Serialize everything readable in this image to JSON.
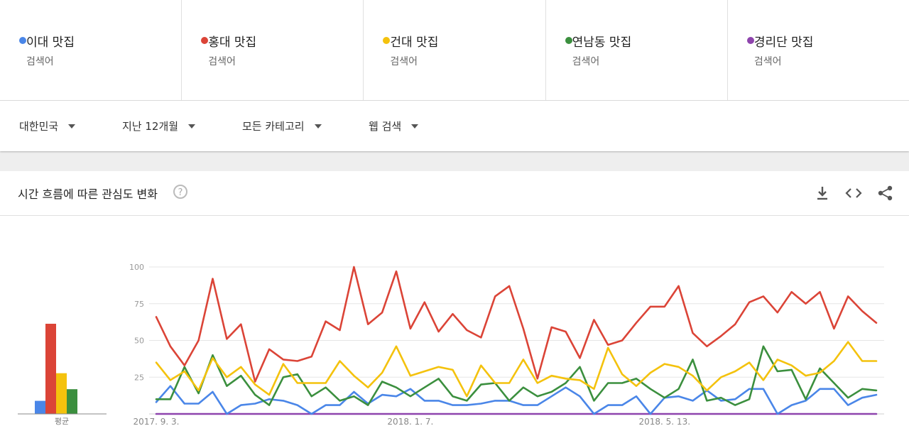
{
  "search_terms": [
    {
      "name": "이대 맛집",
      "sub": "검색어",
      "color": "#4a86e8"
    },
    {
      "name": "홍대 맛집",
      "sub": "검색어",
      "color": "#db4437"
    },
    {
      "name": "건대 맛집",
      "sub": "검색어",
      "color": "#f4c20d"
    },
    {
      "name": "연남동 맛집",
      "sub": "검색어",
      "color": "#3b8f3e"
    },
    {
      "name": "경리단 맛집",
      "sub": "검색어",
      "color": "#8e44ad"
    }
  ],
  "filters": {
    "region": "대한민국",
    "period": "지난 12개월",
    "category": "모든 카테고리",
    "search_type": "웹 검색"
  },
  "chart_header": {
    "title": "시간 흐름에 따른 관심도 변화",
    "help": "?",
    "icons": [
      "download-icon",
      "embed-code-icon",
      "share-icon"
    ]
  },
  "average_label": "평균",
  "chart_data": {
    "type": "line",
    "ylim": [
      0,
      100
    ],
    "yticks": [
      "25",
      "50",
      "75",
      "100"
    ],
    "xtick_labels": [
      {
        "label": "2017. 9. 3.",
        "index": 0
      },
      {
        "label": "2018. 1. 7.",
        "index": 18
      },
      {
        "label": "2018. 5. 13.",
        "index": 36
      }
    ],
    "averages": [
      {
        "name": "이대 맛집",
        "value": 9
      },
      {
        "name": "홍대 맛집",
        "value": 62
      },
      {
        "name": "건대 맛집",
        "value": 28
      },
      {
        "name": "연남동 맛집",
        "value": 17
      },
      {
        "name": "경리단 맛집",
        "value": 0
      }
    ],
    "series": [
      {
        "name": "홍대 맛집",
        "color": "#db4437",
        "values": [
          66,
          46,
          33,
          50,
          92,
          51,
          61,
          22,
          44,
          37,
          36,
          39,
          63,
          57,
          100,
          61,
          69,
          97,
          58,
          76,
          56,
          68,
          57,
          52,
          80,
          87,
          58,
          24,
          59,
          56,
          38,
          64,
          47,
          50,
          62,
          73,
          73,
          87,
          55,
          46,
          53,
          61,
          76,
          80,
          69,
          83,
          75,
          83,
          58,
          80,
          70,
          62
        ]
      },
      {
        "name": "건대 맛집",
        "color": "#f4c20d",
        "values": [
          35,
          23,
          29,
          16,
          38,
          25,
          32,
          20,
          13,
          34,
          21,
          21,
          21,
          36,
          26,
          18,
          28,
          46,
          26,
          29,
          32,
          30,
          12,
          33,
          21,
          21,
          37,
          21,
          26,
          24,
          23,
          17,
          45,
          27,
          19,
          28,
          34,
          32,
          26,
          16,
          25,
          29,
          35,
          23,
          37,
          33,
          26,
          28,
          36,
          49,
          36,
          36
        ]
      },
      {
        "name": "연남동 맛집",
        "color": "#3b8f3e",
        "values": [
          10,
          10,
          32,
          14,
          40,
          19,
          26,
          13,
          6,
          25,
          27,
          12,
          18,
          9,
          12,
          6,
          22,
          18,
          12,
          18,
          24,
          12,
          9,
          20,
          21,
          9,
          18,
          12,
          15,
          21,
          32,
          9,
          21,
          21,
          24,
          17,
          11,
          17,
          37,
          9,
          11,
          6,
          10,
          46,
          29,
          30,
          10,
          31,
          21,
          11,
          17,
          16
        ]
      },
      {
        "name": "이대 맛집",
        "color": "#4a86e8",
        "values": [
          8,
          19,
          7,
          7,
          15,
          0,
          6,
          7,
          10,
          9,
          6,
          0,
          6,
          6,
          15,
          7,
          13,
          12,
          17,
          9,
          9,
          6,
          6,
          7,
          9,
          9,
          6,
          6,
          12,
          18,
          12,
          0,
          6,
          6,
          12,
          0,
          11,
          12,
          9,
          16,
          9,
          10,
          17,
          17,
          0,
          6,
          9,
          17,
          17,
          6,
          11,
          13
        ]
      },
      {
        "name": "경리단 맛집",
        "color": "#8e44ad",
        "values": [
          0,
          0,
          0,
          0,
          0,
          0,
          0,
          0,
          0,
          0,
          0,
          0,
          0,
          0,
          0,
          0,
          0,
          0,
          0,
          0,
          0,
          0,
          0,
          0,
          0,
          0,
          0,
          0,
          0,
          0,
          0,
          0,
          0,
          0,
          0,
          0,
          0,
          0,
          0,
          0,
          0,
          0,
          0,
          0,
          0,
          0,
          0,
          0,
          0,
          0,
          0,
          0
        ]
      }
    ]
  }
}
